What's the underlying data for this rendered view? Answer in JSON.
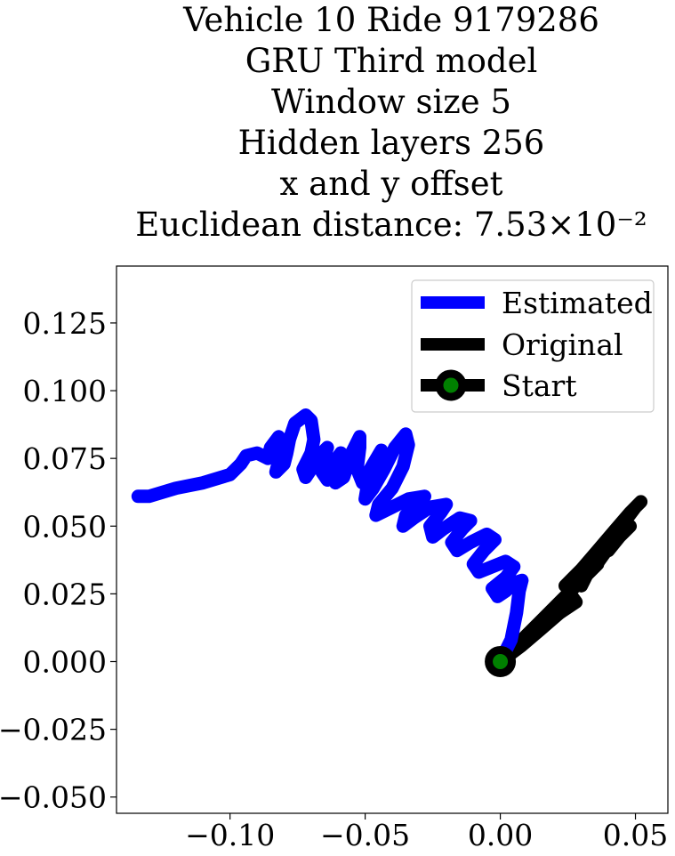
{
  "chart_data": {
    "type": "line",
    "title_lines": [
      "Vehicle 10 Ride 9179286",
      "GRU Third model",
      "Window size 5",
      "Hidden layers 256",
      "x and y offset",
      "Euclidean distance: 7.53×10⁻²"
    ],
    "xlim": [
      -0.142,
      0.062
    ],
    "ylim": [
      -0.056,
      0.146
    ],
    "xticks": [
      -0.1,
      -0.05,
      0.0,
      0.05
    ],
    "xtick_labels": [
      "−0.10",
      "−0.05",
      "0.00",
      "0.05"
    ],
    "yticks": [
      0.125,
      0.1,
      0.075,
      0.05,
      0.025,
      0.0,
      -0.025,
      -0.05
    ],
    "ytick_labels": [
      "0.125",
      "0.100",
      "0.075",
      "0.050",
      "0.025",
      "0.000",
      "−0.025",
      "−0.050"
    ],
    "grid": false,
    "legend_position": "top-right",
    "series": [
      {
        "name": "Estimated",
        "color": "#0000ff",
        "points": [
          [
            0.0,
            0.0
          ],
          [
            0.004,
            0.008
          ],
          [
            0.006,
            0.018
          ],
          [
            0.007,
            0.026
          ],
          [
            0.008,
            0.03
          ],
          [
            0.005,
            0.029
          ],
          [
            0.002,
            0.026
          ],
          [
            -0.001,
            0.024
          ],
          [
            -0.003,
            0.027
          ],
          [
            0.002,
            0.031
          ],
          [
            0.005,
            0.035
          ],
          [
            0.002,
            0.037
          ],
          [
            -0.003,
            0.035
          ],
          [
            -0.008,
            0.033
          ],
          [
            -0.01,
            0.036
          ],
          [
            -0.006,
            0.041
          ],
          [
            -0.002,
            0.045
          ],
          [
            -0.005,
            0.047
          ],
          [
            -0.011,
            0.044
          ],
          [
            -0.016,
            0.041
          ],
          [
            -0.018,
            0.044
          ],
          [
            -0.014,
            0.049
          ],
          [
            -0.011,
            0.052
          ],
          [
            -0.015,
            0.053
          ],
          [
            -0.021,
            0.049
          ],
          [
            -0.025,
            0.046
          ],
          [
            -0.026,
            0.05
          ],
          [
            -0.022,
            0.055
          ],
          [
            -0.02,
            0.058
          ],
          [
            -0.026,
            0.057
          ],
          [
            -0.032,
            0.053
          ],
          [
            -0.036,
            0.05
          ],
          [
            -0.035,
            0.054
          ],
          [
            -0.03,
            0.058
          ],
          [
            -0.028,
            0.061
          ],
          [
            -0.034,
            0.06
          ],
          [
            -0.04,
            0.057
          ],
          [
            -0.046,
            0.054
          ],
          [
            -0.045,
            0.058
          ],
          [
            -0.04,
            0.064
          ],
          [
            -0.036,
            0.072
          ],
          [
            -0.034,
            0.08
          ],
          [
            -0.035,
            0.084
          ],
          [
            -0.039,
            0.079
          ],
          [
            -0.043,
            0.071
          ],
          [
            -0.047,
            0.064
          ],
          [
            -0.05,
            0.06
          ],
          [
            -0.049,
            0.066
          ],
          [
            -0.046,
            0.074
          ],
          [
            -0.044,
            0.078
          ],
          [
            -0.047,
            0.073
          ],
          [
            -0.051,
            0.066
          ],
          [
            -0.053,
            0.071
          ],
          [
            -0.052,
            0.079
          ],
          [
            -0.052,
            0.083
          ],
          [
            -0.055,
            0.077
          ],
          [
            -0.058,
            0.068
          ],
          [
            -0.061,
            0.066
          ],
          [
            -0.06,
            0.072
          ],
          [
            -0.059,
            0.077
          ],
          [
            -0.062,
            0.073
          ],
          [
            -0.064,
            0.067
          ],
          [
            -0.066,
            0.07
          ],
          [
            -0.065,
            0.076
          ],
          [
            -0.064,
            0.079
          ],
          [
            -0.067,
            0.076
          ],
          [
            -0.07,
            0.071
          ],
          [
            -0.072,
            0.068
          ],
          [
            -0.073,
            0.071
          ],
          [
            -0.07,
            0.077
          ],
          [
            -0.069,
            0.082
          ],
          [
            -0.07,
            0.089
          ],
          [
            -0.072,
            0.091
          ],
          [
            -0.076,
            0.088
          ],
          [
            -0.078,
            0.082
          ],
          [
            -0.079,
            0.077
          ],
          [
            -0.08,
            0.073
          ],
          [
            -0.083,
            0.07
          ],
          [
            -0.082,
            0.074
          ],
          [
            -0.08,
            0.079
          ],
          [
            -0.082,
            0.083
          ],
          [
            -0.085,
            0.079
          ],
          [
            -0.086,
            0.075
          ],
          [
            -0.09,
            0.077
          ],
          [
            -0.094,
            0.076
          ],
          [
            -0.096,
            0.073
          ],
          [
            -0.1,
            0.069
          ],
          [
            -0.11,
            0.066
          ],
          [
            -0.12,
            0.064
          ],
          [
            -0.13,
            0.061
          ],
          [
            -0.134,
            0.061
          ]
        ]
      },
      {
        "name": "Original",
        "color": "#000000",
        "points": [
          [
            0.0,
            0.0
          ],
          [
            0.008,
            0.006
          ],
          [
            0.015,
            0.012
          ],
          [
            0.022,
            0.018
          ],
          [
            0.028,
            0.022
          ],
          [
            0.025,
            0.026
          ],
          [
            0.027,
            0.03
          ],
          [
            0.032,
            0.033
          ],
          [
            0.03,
            0.028
          ],
          [
            0.034,
            0.036
          ],
          [
            0.038,
            0.04
          ],
          [
            0.035,
            0.035
          ],
          [
            0.04,
            0.042
          ],
          [
            0.044,
            0.046
          ],
          [
            0.04,
            0.041
          ],
          [
            0.045,
            0.049
          ],
          [
            0.048,
            0.05
          ],
          [
            0.043,
            0.045
          ],
          [
            0.047,
            0.053
          ],
          [
            0.05,
            0.057
          ],
          [
            0.052,
            0.059
          ],
          [
            0.048,
            0.055
          ],
          [
            0.042,
            0.048
          ],
          [
            0.036,
            0.041
          ],
          [
            0.03,
            0.034
          ],
          [
            0.024,
            0.028
          ],
          [
            0.03,
            0.032
          ],
          [
            0.036,
            0.036
          ],
          [
            0.03,
            0.03
          ],
          [
            0.022,
            0.022
          ],
          [
            0.014,
            0.014
          ],
          [
            0.007,
            0.007
          ],
          [
            0.0,
            0.0
          ]
        ]
      }
    ],
    "start_point": {
      "name": "Start",
      "x": 0.0,
      "y": 0.0,
      "marker_edge": "#000000",
      "marker_face": "#008000"
    }
  }
}
